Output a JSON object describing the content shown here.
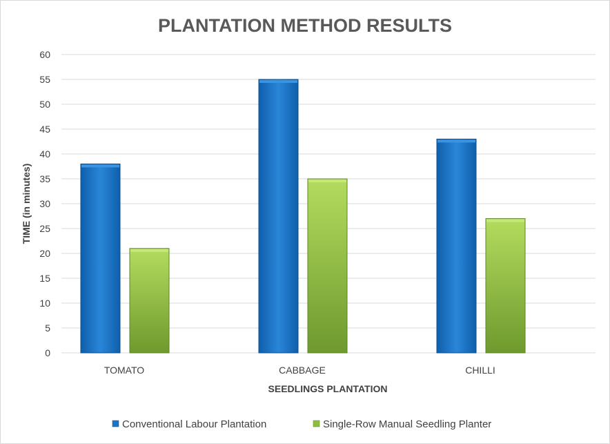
{
  "chart_data": {
    "type": "bar",
    "title": "PLANTATION METHOD RESULTS",
    "xlabel": "SEEDLINGS PLANTATION",
    "ylabel": "TIME (in minutes)",
    "categories": [
      "TOMATO",
      "CABBAGE",
      "CHILLI"
    ],
    "series": [
      {
        "name": "Conventional Labour Plantation",
        "values": [
          38,
          55,
          43
        ],
        "color": "#1b75c9"
      },
      {
        "name": "Single-Row Manual Seedling Planter",
        "values": [
          21,
          35,
          27
        ],
        "color": "#8fbd3d"
      }
    ],
    "ylim": [
      0,
      60
    ],
    "yticks": [
      0,
      5,
      10,
      15,
      20,
      25,
      30,
      35,
      40,
      45,
      50,
      55,
      60
    ],
    "grid": true,
    "legend": "bottom"
  }
}
